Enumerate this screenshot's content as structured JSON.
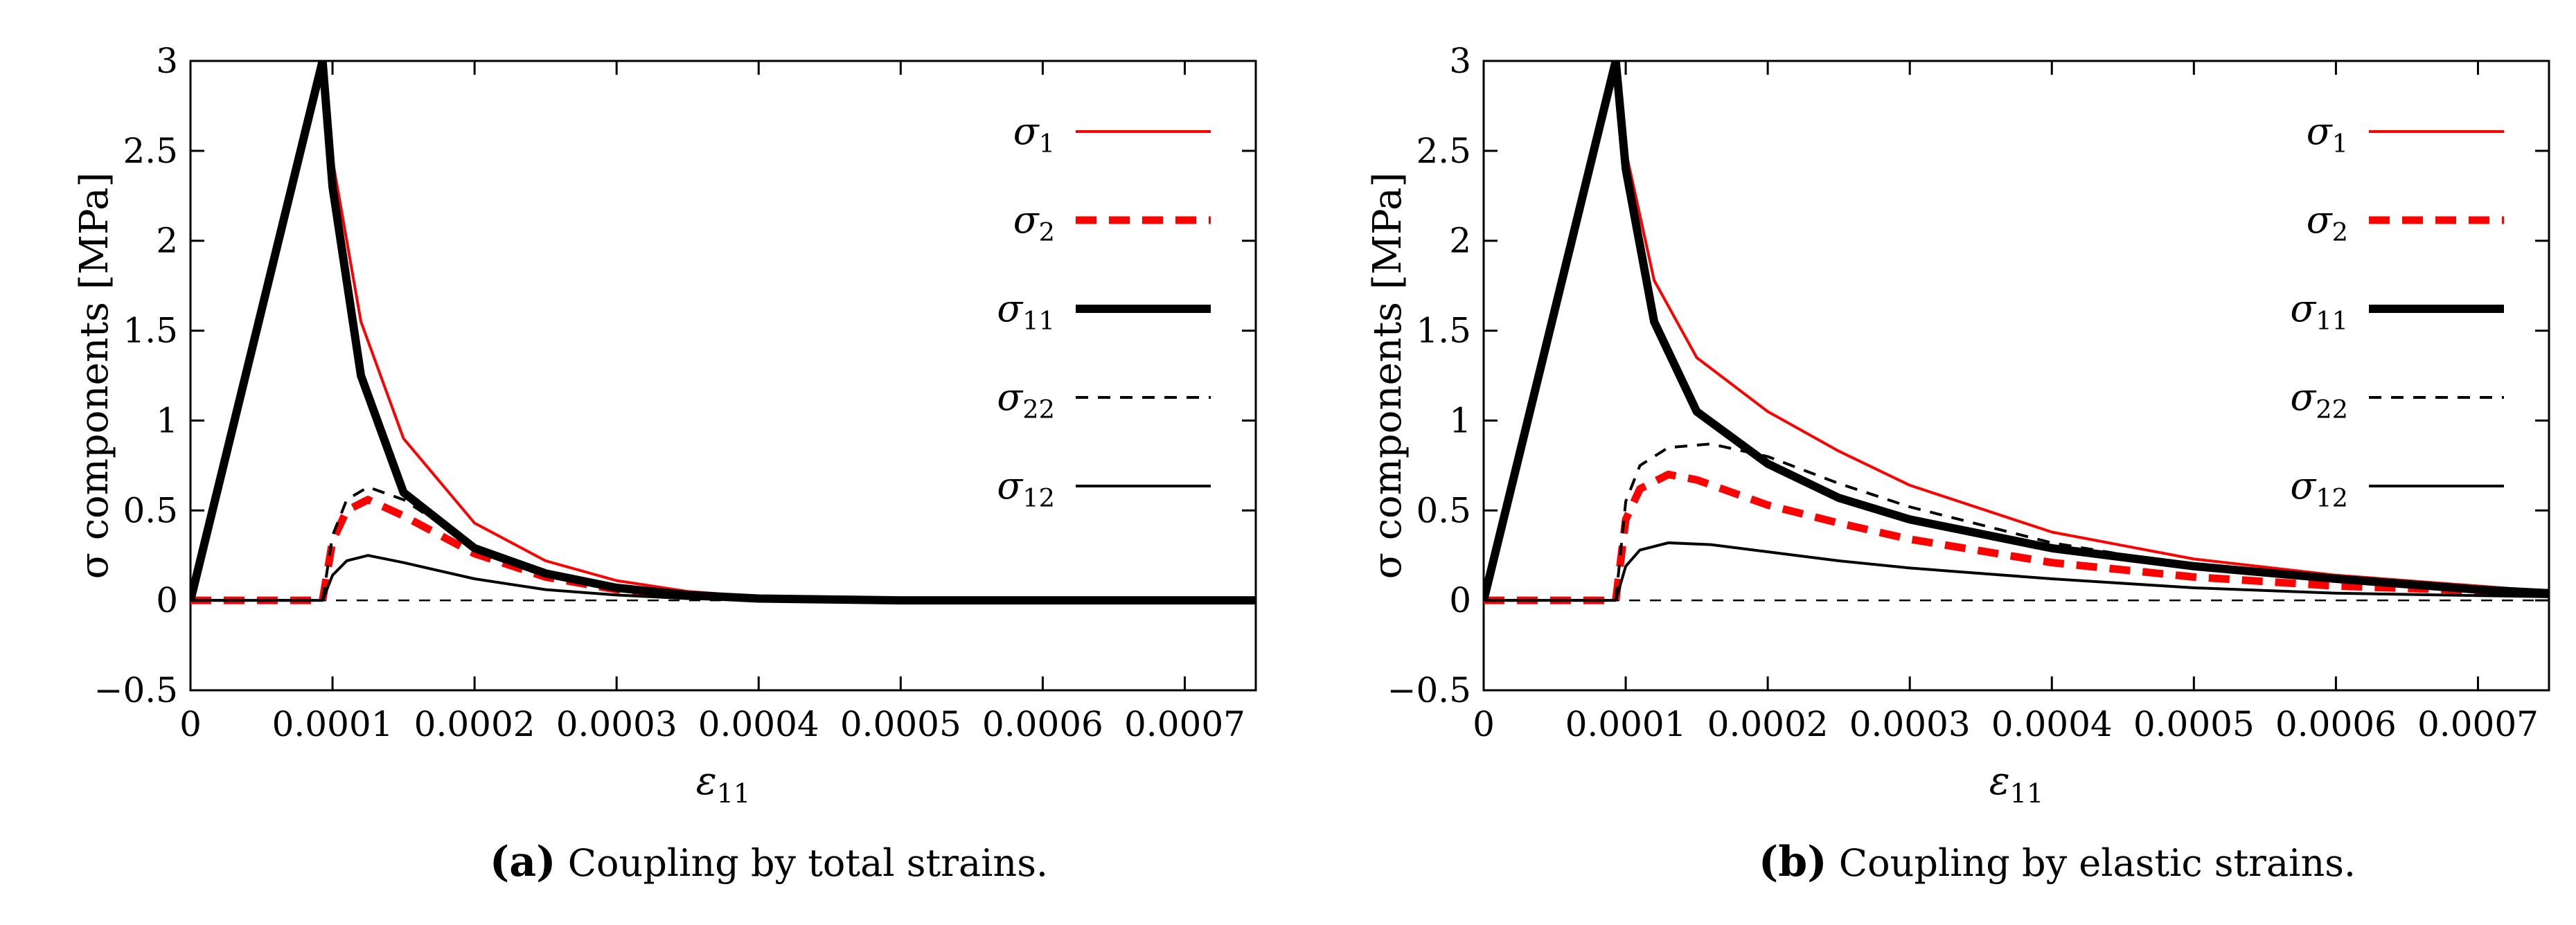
{
  "figure": {
    "panels": [
      {
        "caption": {
          "letter": "(a)",
          "text": " Coupling by total strains."
        },
        "chart_data": {
          "type": "line",
          "title": "",
          "xlabel": "ε11",
          "ylabel": "σ components [MPa]",
          "xlim": [
            0,
            0.00075
          ],
          "ylim": [
            -0.5,
            3
          ],
          "x_ticks": [
            "0",
            "0.0001",
            "0.0002",
            "0.0003",
            "0.0004",
            "0.0005",
            "0.0006",
            "0.0007"
          ],
          "x_tick_values": [
            0,
            0.0001,
            0.0002,
            0.0003,
            0.0004,
            0.0005,
            0.0006,
            0.0007
          ],
          "y_ticks": [
            "−0.5",
            "0",
            "0.5",
            "1",
            "1.5",
            "2",
            "2.5",
            "3"
          ],
          "y_tick_values": [
            -0.5,
            0,
            0.5,
            1,
            1.5,
            2,
            2.5,
            3
          ],
          "zero_line": true,
          "legend_position": "top-right",
          "series": [
            {
              "name": "σ1",
              "color": "#ff0000",
              "style": "solid-thin",
              "x": [
                0,
                9.3e-05,
                0.0001,
                0.00012,
                0.00015,
                0.0002,
                0.00025,
                0.0003,
                0.00035,
                0.0004,
                0.0005,
                0.0006,
                0.00075
              ],
              "y": [
                0,
                3.0,
                2.45,
                1.55,
                0.9,
                0.43,
                0.22,
                0.11,
                0.05,
                0.02,
                0.01,
                0.0,
                0.0
              ]
            },
            {
              "name": "σ2",
              "color": "#ff0000",
              "style": "dashed-thick",
              "x": [
                0,
                9.3e-05,
                0.0001,
                0.00011,
                0.000125,
                0.00015,
                0.0002,
                0.00025,
                0.0003,
                0.00035,
                0.0004,
                0.0005,
                0.00075
              ],
              "y": [
                0,
                0,
                0.33,
                0.5,
                0.56,
                0.47,
                0.26,
                0.13,
                0.06,
                0.03,
                0.01,
                0.0,
                0.0
              ]
            },
            {
              "name": "σ11",
              "color": "#000000",
              "style": "solid-thick",
              "x": [
                0,
                9.3e-05,
                0.0001,
                0.00012,
                0.00015,
                0.0002,
                0.00025,
                0.0003,
                0.00035,
                0.0004,
                0.0005,
                0.0006,
                0.00075
              ],
              "y": [
                0,
                3.0,
                2.3,
                1.25,
                0.6,
                0.29,
                0.15,
                0.07,
                0.03,
                0.01,
                0.0,
                0.0,
                0.0
              ]
            },
            {
              "name": "σ22",
              "color": "#000000",
              "style": "dashed-thin",
              "x": [
                0,
                9.3e-05,
                0.0001,
                0.00011,
                0.000125,
                0.00015,
                0.0002,
                0.00025,
                0.0003,
                0.00035,
                0.0004,
                0.0005,
                0.00075
              ],
              "y": [
                0,
                0,
                0.36,
                0.56,
                0.63,
                0.56,
                0.3,
                0.15,
                0.07,
                0.03,
                0.01,
                0.0,
                0.0
              ]
            },
            {
              "name": "σ12",
              "color": "#000000",
              "style": "solid-thin",
              "x": [
                0,
                9.3e-05,
                0.0001,
                0.00011,
                0.000125,
                0.00015,
                0.0002,
                0.00025,
                0.0003,
                0.00035,
                0.0004,
                0.0005,
                0.00075
              ],
              "y": [
                0,
                0,
                0.14,
                0.22,
                0.25,
                0.21,
                0.12,
                0.06,
                0.03,
                0.01,
                0.0,
                0.0,
                0.0
              ]
            }
          ]
        }
      },
      {
        "caption": {
          "letter": "(b)",
          "text": " Coupling by elastic strains."
        },
        "chart_data": {
          "type": "line",
          "title": "",
          "xlabel": "ε11",
          "ylabel": "σ components [MPa]",
          "xlim": [
            0,
            0.00075
          ],
          "ylim": [
            -0.5,
            3
          ],
          "x_ticks": [
            "0",
            "0.0001",
            "0.0002",
            "0.0003",
            "0.0004",
            "0.0005",
            "0.0006",
            "0.0007"
          ],
          "x_tick_values": [
            0,
            0.0001,
            0.0002,
            0.0003,
            0.0004,
            0.0005,
            0.0006,
            0.0007
          ],
          "y_ticks": [
            "−0.5",
            "0",
            "0.5",
            "1",
            "1.5",
            "2",
            "2.5",
            "3"
          ],
          "y_tick_values": [
            -0.5,
            0,
            0.5,
            1,
            1.5,
            2,
            2.5,
            3
          ],
          "zero_line": true,
          "legend_position": "top-right",
          "series": [
            {
              "name": "σ1",
              "color": "#ff0000",
              "style": "solid-thin",
              "x": [
                0,
                9.3e-05,
                0.0001,
                0.00012,
                0.00015,
                0.0002,
                0.00025,
                0.0003,
                0.0004,
                0.0005,
                0.0006,
                0.0007,
                0.00075
              ],
              "y": [
                0,
                3.0,
                2.5,
                1.78,
                1.35,
                1.05,
                0.83,
                0.64,
                0.38,
                0.23,
                0.14,
                0.08,
                0.05
              ]
            },
            {
              "name": "σ2",
              "color": "#ff0000",
              "style": "dashed-thick",
              "x": [
                0,
                9.3e-05,
                0.0001,
                0.00011,
                0.00013,
                0.00015,
                0.0002,
                0.00025,
                0.0003,
                0.0004,
                0.0005,
                0.0006,
                0.00075
              ],
              "y": [
                0,
                0,
                0.45,
                0.62,
                0.7,
                0.67,
                0.53,
                0.43,
                0.34,
                0.21,
                0.13,
                0.08,
                0.04
              ]
            },
            {
              "name": "σ11",
              "color": "#000000",
              "style": "solid-thick",
              "x": [
                0,
                9.3e-05,
                0.0001,
                0.00012,
                0.00015,
                0.0002,
                0.00025,
                0.0003,
                0.0004,
                0.0005,
                0.0006,
                0.0007,
                0.00075
              ],
              "y": [
                0,
                3.0,
                2.4,
                1.55,
                1.05,
                0.76,
                0.57,
                0.45,
                0.29,
                0.19,
                0.12,
                0.06,
                0.04
              ]
            },
            {
              "name": "σ22",
              "color": "#000000",
              "style": "dashed-thin",
              "x": [
                0,
                9.3e-05,
                0.0001,
                0.00011,
                0.00013,
                0.00016,
                0.0002,
                0.00025,
                0.0003,
                0.0004,
                0.0005,
                0.0006,
                0.00075
              ],
              "y": [
                0,
                0,
                0.55,
                0.75,
                0.85,
                0.87,
                0.8,
                0.65,
                0.52,
                0.32,
                0.19,
                0.11,
                0.03
              ]
            },
            {
              "name": "σ12",
              "color": "#000000",
              "style": "solid-thin",
              "x": [
                0,
                9.3e-05,
                0.0001,
                0.00011,
                0.00013,
                0.00016,
                0.0002,
                0.00025,
                0.0003,
                0.0004,
                0.0005,
                0.0006,
                0.00075
              ],
              "y": [
                0,
                0,
                0.19,
                0.28,
                0.32,
                0.31,
                0.27,
                0.22,
                0.18,
                0.12,
                0.07,
                0.04,
                0.02
              ]
            }
          ]
        }
      }
    ]
  }
}
